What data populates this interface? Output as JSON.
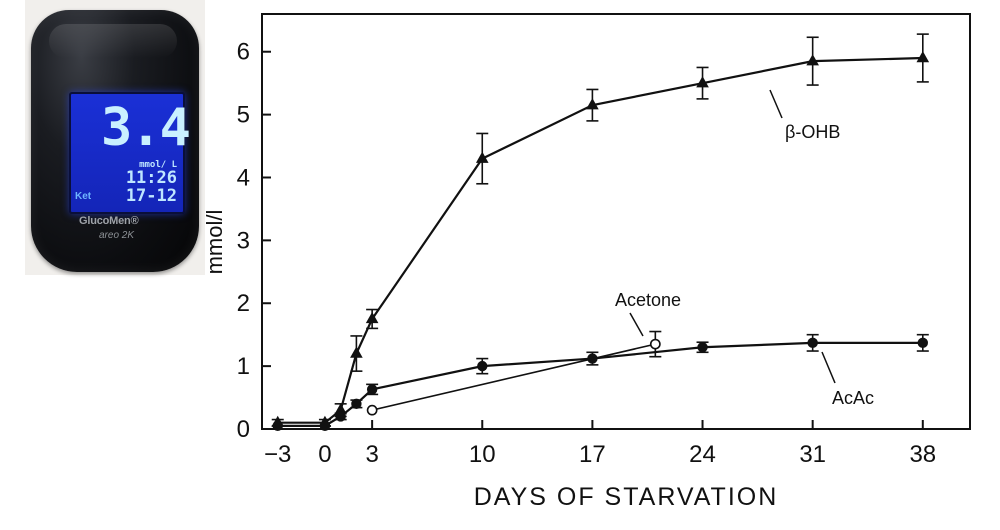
{
  "meter": {
    "brand": "GlucoMen®",
    "model": "areo 2K",
    "reading": "3.4",
    "unit": "mmol/ L",
    "time": "11:26",
    "date": "17-12",
    "mode": "Ket",
    "colors": {
      "screen": "#1a30d6",
      "digits": "#c9f0ff",
      "body": "#0c0d10"
    }
  },
  "chart_data": {
    "type": "line",
    "title": "",
    "xlabel": "DAYS OF STARVATION",
    "ylabel": "mmol/l",
    "xlim": [
      -4,
      41
    ],
    "ylim": [
      0,
      6.6
    ],
    "x_ticks": [
      -3,
      0,
      3,
      10,
      17,
      24,
      31,
      38
    ],
    "x_tick_labels": [
      "−3",
      "0",
      "3",
      "10",
      "17",
      "24",
      "31",
      "38"
    ],
    "y_ticks": [
      0,
      1,
      2,
      3,
      4,
      5,
      6
    ],
    "y_tick_labels": [
      "0",
      "1",
      "2",
      "3",
      "4",
      "5",
      "6"
    ],
    "grid": false,
    "series": [
      {
        "name": "β-OHB",
        "marker": "triangle",
        "x": [
          -3,
          0,
          1,
          2,
          3,
          10,
          17,
          24,
          31,
          38
        ],
        "y": [
          0.1,
          0.1,
          0.3,
          1.2,
          1.75,
          4.3,
          5.15,
          5.5,
          5.85,
          5.9
        ],
        "err": [
          0.05,
          0.05,
          0.1,
          0.28,
          0.15,
          0.4,
          0.25,
          0.25,
          0.38,
          0.38
        ]
      },
      {
        "name": "AcAc",
        "marker": "filled-circle",
        "x": [
          -3,
          0,
          1,
          2,
          3,
          10,
          17,
          24,
          31,
          38
        ],
        "y": [
          0.05,
          0.05,
          0.2,
          0.4,
          0.63,
          1.0,
          1.12,
          1.3,
          1.37,
          1.37
        ],
        "err": [
          0.03,
          0.03,
          0.05,
          0.06,
          0.08,
          0.12,
          0.1,
          0.08,
          0.13,
          0.13
        ]
      },
      {
        "name": "Acetone",
        "marker": "open-circle",
        "x": [
          3,
          21
        ],
        "y": [
          0.3,
          1.35
        ],
        "err": [
          0.03,
          0.2
        ]
      }
    ],
    "colors": {
      "ink": "#111111",
      "frame": "#111111"
    }
  }
}
